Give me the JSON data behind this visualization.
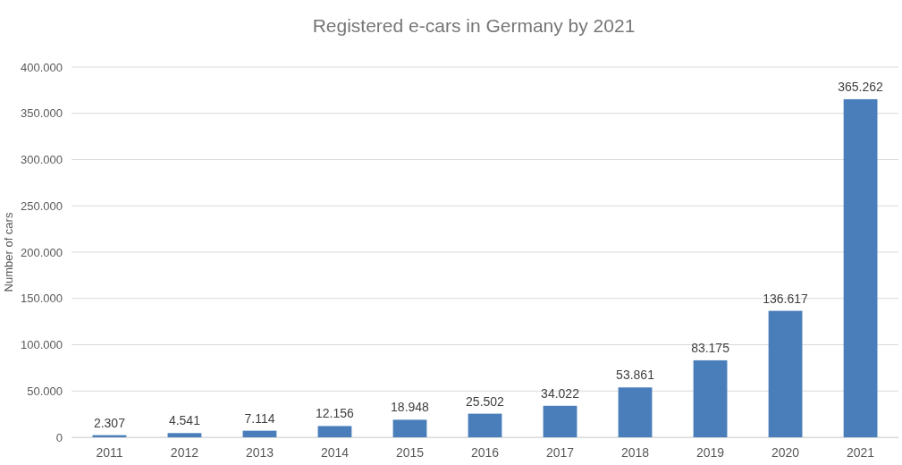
{
  "chart_data": {
    "type": "bar",
    "title": "Registered e-cars in Germany by 2021",
    "ylabel": "Number of cars",
    "categories": [
      "2011",
      "2012",
      "2013",
      "2014",
      "2015",
      "2016",
      "2017",
      "2018",
      "2019",
      "2020",
      "2021"
    ],
    "values": [
      2307,
      4541,
      7114,
      12156,
      18948,
      25502,
      34022,
      53861,
      83175,
      136617,
      365262
    ],
    "value_labels": [
      "2.307",
      "4.541",
      "7.114",
      "12.156",
      "18.948",
      "25.502",
      "34.022",
      "53.861",
      "83.175",
      "136.617",
      "365.262"
    ],
    "color": "#4a7ebb",
    "ylim": [
      0,
      400000
    ],
    "yticks": [
      0,
      {
        "value": 50000,
        "label": "50.000"
      },
      {
        "value": 100000,
        "label": "100.000"
      },
      {
        "value": 150000,
        "label": "150.000"
      },
      {
        "value": 200000,
        "label": "200.000"
      },
      {
        "value": 250000,
        "label": "250.000"
      },
      {
        "value": 300000,
        "label": "300.000"
      },
      {
        "value": 350000,
        "label": "350.000"
      },
      {
        "value": 400000,
        "label": "400.000"
      }
    ],
    "grid": "y"
  }
}
